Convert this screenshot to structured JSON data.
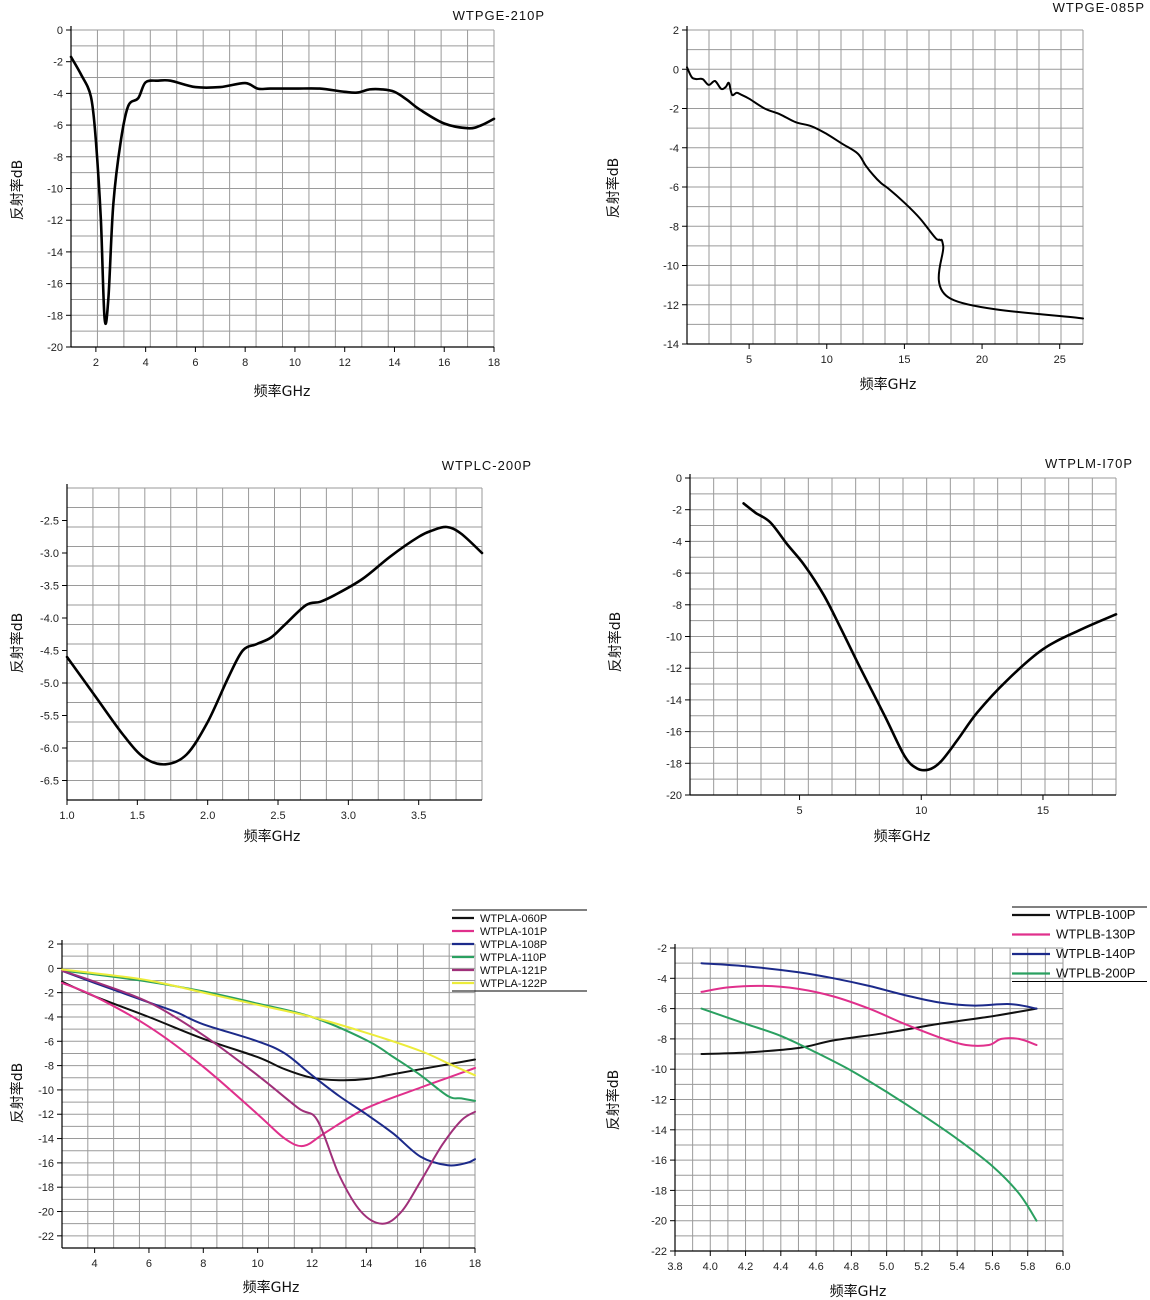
{
  "chart_data": [
    {
      "type": "line",
      "title": "WTPGE-210P",
      "xlabel": "频率GHz",
      "ylabel": "反射率dB",
      "xlim": [
        1,
        18
      ],
      "ylim": [
        -20,
        0
      ],
      "xticks": [
        2,
        4,
        6,
        8,
        10,
        12,
        14,
        16,
        18
      ],
      "yticks": [
        0,
        -2,
        -4,
        -6,
        -8,
        -10,
        -12,
        -14,
        -16,
        -18,
        -20
      ],
      "grid": true,
      "series": [
        {
          "name": "WTPGE-210P",
          "color": "#000000",
          "x": [
            1.0,
            1.4,
            1.8,
            2.0,
            2.2,
            2.35,
            2.5,
            2.7,
            3.0,
            3.3,
            3.7,
            4.0,
            4.5,
            5.0,
            6.0,
            7.0,
            8.0,
            8.5,
            9.0,
            10.0,
            11.0,
            12.0,
            12.5,
            13.0,
            13.5,
            14.0,
            14.5,
            15.0,
            16.0,
            17.0,
            17.5,
            18.0
          ],
          "y": [
            -1.7,
            -2.8,
            -4.2,
            -7.0,
            -12.0,
            -18.2,
            -17.0,
            -11.0,
            -7.0,
            -4.8,
            -4.3,
            -3.3,
            -3.2,
            -3.2,
            -3.6,
            -3.6,
            -3.35,
            -3.7,
            -3.7,
            -3.7,
            -3.7,
            -3.9,
            -3.95,
            -3.75,
            -3.75,
            -3.9,
            -4.4,
            -5.0,
            -5.9,
            -6.2,
            -6.0,
            -5.6
          ]
        }
      ]
    },
    {
      "type": "line",
      "title": "WTPGE-085P",
      "xlabel": "频率GHz",
      "ylabel": "反射率dB",
      "xlim": [
        1,
        26.5
      ],
      "ylim": [
        -14,
        2
      ],
      "xticks": [
        5,
        10,
        15,
        20,
        25
      ],
      "yticks": [
        2,
        0,
        -2,
        -4,
        -6,
        -8,
        -10,
        -12,
        -14
      ],
      "grid": true,
      "series": [
        {
          "name": "WTPGE-085P",
          "color": "#000000",
          "x": [
            1.0,
            1.3,
            1.6,
            2.0,
            2.4,
            2.8,
            3.2,
            3.5,
            3.7,
            3.9,
            4.2,
            4.5,
            5.0,
            6.0,
            7.0,
            8.0,
            9.0,
            10.0,
            11.0,
            12.0,
            12.5,
            13.0,
            13.5,
            14.0,
            15.0,
            16.0,
            17.0,
            17.3,
            17.5,
            18.0,
            26.5
          ],
          "y": [
            0.1,
            -0.4,
            -0.5,
            -0.5,
            -0.8,
            -0.6,
            -1.0,
            -0.9,
            -0.7,
            -1.3,
            -1.2,
            -1.3,
            -1.5,
            -2.0,
            -2.3,
            -2.7,
            -2.9,
            -3.3,
            -3.8,
            -4.3,
            -4.9,
            -5.4,
            -5.8,
            -6.1,
            -6.8,
            -7.6,
            -8.6,
            -8.7,
            -9.0,
            -11.7,
            -12.7
          ]
        }
      ]
    },
    {
      "type": "line",
      "title": "WTPLC-200P",
      "xlabel": "频率GHz",
      "ylabel": "反射率dB",
      "xlim": [
        1.0,
        3.95
      ],
      "ylim": [
        -6.8,
        -2.0
      ],
      "xticks": [
        "1.0",
        "1.5",
        "2.0",
        "2.5",
        "3.0",
        "3.5"
      ],
      "yticks": [
        "-2.5",
        "-3.0",
        "-3.5",
        "-4.0",
        "-4.5",
        "-5.0",
        "-5.5",
        "-6.0",
        "-6.5"
      ],
      "grid": true,
      "series": [
        {
          "name": "WTPLC-200P",
          "color": "#000000",
          "x": [
            1.0,
            1.2,
            1.4,
            1.55,
            1.7,
            1.85,
            2.0,
            2.15,
            2.25,
            2.35,
            2.45,
            2.55,
            2.7,
            2.8,
            2.9,
            3.1,
            3.3,
            3.5,
            3.6,
            3.7,
            3.8,
            3.95
          ],
          "y": [
            -4.6,
            -5.2,
            -5.8,
            -6.15,
            -6.25,
            -6.1,
            -5.6,
            -4.9,
            -4.5,
            -4.4,
            -4.3,
            -4.1,
            -3.8,
            -3.75,
            -3.65,
            -3.4,
            -3.05,
            -2.75,
            -2.65,
            -2.6,
            -2.7,
            -3.0
          ]
        }
      ]
    },
    {
      "type": "line",
      "title": "WTPLM-I70P",
      "xlabel": "频率GHz",
      "ylabel": "反射率dB",
      "xlim": [
        0.5,
        18
      ],
      "ylim": [
        -20,
        0
      ],
      "xticks": [
        5,
        10,
        15
      ],
      "yticks": [
        0,
        -2,
        -4,
        -6,
        -8,
        -10,
        -12,
        -14,
        -16,
        -18,
        -20
      ],
      "grid": true,
      "series": [
        {
          "name": "WTPLM-I70P",
          "color": "#000000",
          "x": [
            2.7,
            3.2,
            3.8,
            4.5,
            5.2,
            6.0,
            6.7,
            7.5,
            8.5,
            9.3,
            9.8,
            10.3,
            10.8,
            11.5,
            12.3,
            13.5,
            15.0,
            16.5,
            18.0
          ],
          "y": [
            -1.6,
            -2.2,
            -2.8,
            -4.2,
            -5.5,
            -7.4,
            -9.5,
            -12.0,
            -15.0,
            -17.5,
            -18.3,
            -18.4,
            -17.9,
            -16.5,
            -14.8,
            -12.8,
            -10.8,
            -9.6,
            -8.6
          ]
        }
      ]
    },
    {
      "type": "line",
      "title": "",
      "xlabel": "频率GHz",
      "ylabel": "反射率dB",
      "xlim": [
        2.8,
        18
      ],
      "ylim": [
        -23,
        2
      ],
      "xticks": [
        4,
        6,
        8,
        10,
        12,
        14,
        16,
        18
      ],
      "yticks": [
        2,
        0,
        -2,
        -4,
        -6,
        -8,
        -10,
        -12,
        -14,
        -16,
        -18,
        -20,
        -22
      ],
      "grid": true,
      "legend": "top-right",
      "series": [
        {
          "name": "WTPLA-060P",
          "color": "#111111",
          "x": [
            2.8,
            4,
            6,
            8,
            10,
            11,
            12,
            13,
            14,
            15,
            16,
            17,
            18
          ],
          "y": [
            -1.1,
            -2.3,
            -4.0,
            -5.8,
            -7.3,
            -8.3,
            -9.0,
            -9.2,
            -9.1,
            -8.7,
            -8.3,
            -7.9,
            -7.5
          ]
        },
        {
          "name": "WTPLA-101P",
          "color": "#e0308c",
          "x": [
            2.8,
            4,
            6,
            8,
            10,
            11,
            11.7,
            12.5,
            14,
            16,
            17,
            18
          ],
          "y": [
            -1.2,
            -2.3,
            -4.8,
            -8.1,
            -12.0,
            -14.0,
            -14.6,
            -13.5,
            -11.5,
            -9.8,
            -9.0,
            -8.2
          ]
        },
        {
          "name": "WTPLA-108P",
          "color": "#1c2a8a",
          "x": [
            2.8,
            4,
            6,
            7,
            8,
            10,
            11,
            12,
            13,
            14,
            15,
            16,
            17,
            17.7,
            18
          ],
          "y": [
            -0.2,
            -1.2,
            -2.8,
            -3.6,
            -4.6,
            -6.0,
            -7.0,
            -8.8,
            -10.5,
            -12.0,
            -13.6,
            -15.5,
            -16.2,
            -16.0,
            -15.7
          ]
        },
        {
          "name": "WTPLA-110P",
          "color": "#2aa060",
          "x": [
            2.8,
            4,
            6,
            8,
            10,
            12,
            14,
            15,
            16,
            17,
            17.5,
            18
          ],
          "y": [
            -0.2,
            -0.5,
            -1.1,
            -1.9,
            -2.9,
            -4.0,
            -5.9,
            -7.3,
            -8.8,
            -10.5,
            -10.7,
            -10.9
          ]
        },
        {
          "name": "WTPLA-121P",
          "color": "#a0307a",
          "x": [
            2.8,
            4,
            6,
            8,
            10,
            11.5,
            12.2,
            13,
            13.8,
            14.6,
            15.3,
            16,
            16.8,
            17.5,
            18
          ],
          "y": [
            -0.2,
            -1.1,
            -2.8,
            -5.5,
            -8.8,
            -11.5,
            -12.5,
            -17.0,
            -20.0,
            -21.0,
            -20.0,
            -17.5,
            -14.5,
            -12.5,
            -11.8
          ]
        },
        {
          "name": "WTPLA-122P",
          "color": "#ecec3a",
          "x": [
            2.8,
            4,
            6,
            8,
            10,
            12,
            14,
            16,
            17,
            18
          ],
          "y": [
            -0.1,
            -0.4,
            -1.0,
            -2.0,
            -3.0,
            -4.0,
            -5.3,
            -6.8,
            -7.8,
            -8.8
          ]
        }
      ]
    },
    {
      "type": "line",
      "title": "",
      "xlabel": "频率GHz",
      "ylabel": "反射率dB",
      "xlim": [
        3.8,
        6.0
      ],
      "ylim": [
        -22,
        -2
      ],
      "xticks": [
        "3.8",
        "4.0",
        "4.2",
        "4.4",
        "4.6",
        "4.8",
        "5.0",
        "5.2",
        "5.4",
        "5.6",
        "5.8",
        "6.0"
      ],
      "yticks": [
        -2,
        -4,
        -6,
        -8,
        -10,
        -12,
        -14,
        -16,
        -18,
        -20,
        -22
      ],
      "grid": true,
      "legend": "top-right",
      "series": [
        {
          "name": "WTPLB-100P",
          "color": "#111111",
          "x": [
            3.95,
            4.2,
            4.5,
            4.7,
            5.0,
            5.3,
            5.6,
            5.85
          ],
          "y": [
            -9.0,
            -8.9,
            -8.6,
            -8.1,
            -7.6,
            -7.0,
            -6.5,
            -6.0
          ]
        },
        {
          "name": "WTPLB-130P",
          "color": "#e0308c",
          "x": [
            3.95,
            4.1,
            4.3,
            4.5,
            4.7,
            4.9,
            5.1,
            5.3,
            5.45,
            5.58,
            5.65,
            5.75,
            5.85
          ],
          "y": [
            -4.9,
            -4.6,
            -4.5,
            -4.7,
            -5.2,
            -6.0,
            -7.0,
            -7.9,
            -8.4,
            -8.4,
            -8.0,
            -8.0,
            -8.4
          ]
        },
        {
          "name": "WTPLB-140P",
          "color": "#1c2a8a",
          "x": [
            3.95,
            4.2,
            4.5,
            4.7,
            4.9,
            5.1,
            5.3,
            5.5,
            5.7,
            5.85
          ],
          "y": [
            -3.0,
            -3.2,
            -3.6,
            -4.0,
            -4.5,
            -5.1,
            -5.6,
            -5.8,
            -5.7,
            -6.0
          ]
        },
        {
          "name": "WTPLB-200P",
          "color": "#2aa060",
          "x": [
            3.95,
            4.2,
            4.4,
            4.6,
            4.8,
            5.0,
            5.2,
            5.4,
            5.6,
            5.75,
            5.85
          ],
          "y": [
            -6.0,
            -7.0,
            -7.8,
            -8.9,
            -10.1,
            -11.5,
            -13.0,
            -14.6,
            -16.4,
            -18.2,
            -20.0
          ]
        }
      ]
    }
  ]
}
